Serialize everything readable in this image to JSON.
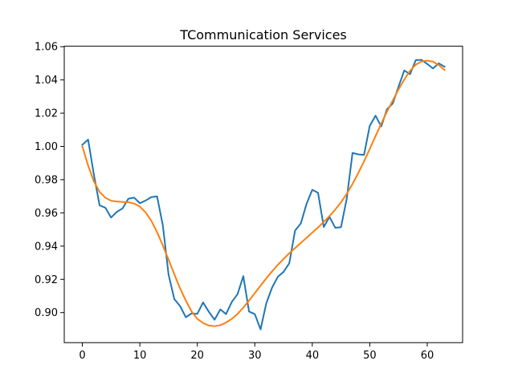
{
  "chart_data": {
    "type": "line",
    "title": "TCommunication Services",
    "xlabel": "",
    "ylabel": "",
    "xlim": [
      -3.15,
      66.15
    ],
    "ylim": [
      0.8819,
      1.0603
    ],
    "x_ticks": [
      0,
      10,
      20,
      30,
      40,
      50,
      60
    ],
    "y_ticks": [
      0.9,
      0.92,
      0.94,
      0.96,
      0.98,
      1.0,
      1.02,
      1.04,
      1.06
    ],
    "y_tick_labels": [
      "0.90",
      "0.92",
      "0.94",
      "0.96",
      "0.98",
      "1.00",
      "1.02",
      "1.04",
      "1.06"
    ],
    "grid": false,
    "legend": "none",
    "series": [
      {
        "color": "#1f77b4",
        "x": [
          0,
          1,
          2,
          3,
          4,
          5,
          6,
          7,
          8,
          9,
          10,
          11,
          12,
          13,
          14,
          15,
          16,
          17,
          18,
          19,
          20,
          21,
          22,
          23,
          24,
          25,
          26,
          27,
          28,
          29,
          30,
          31,
          32,
          33,
          34,
          35,
          36,
          37,
          38,
          39,
          40,
          41,
          42,
          43,
          44,
          45,
          46,
          47,
          48,
          49,
          50,
          51,
          52,
          53,
          54,
          55,
          56,
          57,
          58,
          59,
          60,
          61,
          62,
          63
        ],
        "values": [
          1.001,
          1.0041,
          0.9831,
          0.9645,
          0.9631,
          0.9572,
          0.9606,
          0.9627,
          0.9685,
          0.9692,
          0.9658,
          0.9674,
          0.9695,
          0.9699,
          0.9525,
          0.9228,
          0.9081,
          0.9039,
          0.8972,
          0.8995,
          0.8992,
          0.9061,
          0.9005,
          0.8957,
          0.9019,
          0.8991,
          0.9064,
          0.9111,
          0.9219,
          0.9006,
          0.8991,
          0.8899,
          0.9056,
          0.915,
          0.9215,
          0.9245,
          0.9297,
          0.9493,
          0.9536,
          0.9654,
          0.9739,
          0.9721,
          0.9515,
          0.9576,
          0.951,
          0.9514,
          0.9687,
          0.9961,
          0.9952,
          0.9949,
          1.0124,
          1.0185,
          1.012,
          1.0224,
          1.0258,
          1.0359,
          1.0457,
          1.0434,
          1.0519,
          1.0521,
          1.0496,
          1.0469,
          1.05,
          1.048
        ]
      },
      {
        "color": "#ff7f0e",
        "x": [
          0,
          1,
          2,
          3,
          4,
          5,
          6,
          7,
          8,
          9,
          10,
          11,
          12,
          13,
          14,
          15,
          16,
          17,
          18,
          19,
          20,
          21,
          22,
          23,
          24,
          25,
          26,
          27,
          28,
          29,
          30,
          31,
          32,
          33,
          34,
          35,
          36,
          37,
          38,
          39,
          40,
          41,
          42,
          43,
          44,
          45,
          46,
          47,
          48,
          49,
          50,
          51,
          52,
          53,
          54,
          55,
          56,
          57,
          58,
          59,
          60,
          61,
          62,
          63
        ],
        "values": [
          1.0,
          0.9885,
          0.979,
          0.9726,
          0.9691,
          0.9673,
          0.9668,
          0.9666,
          0.9664,
          0.9656,
          0.9638,
          0.9603,
          0.9552,
          0.9484,
          0.9404,
          0.9318,
          0.923,
          0.9146,
          0.9072,
          0.9007,
          0.8962,
          0.8937,
          0.8922,
          0.8918,
          0.8924,
          0.894,
          0.8962,
          0.8992,
          0.903,
          0.9073,
          0.9117,
          0.9162,
          0.9206,
          0.9248,
          0.9287,
          0.9323,
          0.9357,
          0.9388,
          0.9419,
          0.945,
          0.9481,
          0.9512,
          0.9546,
          0.9581,
          0.962,
          0.9664,
          0.9715,
          0.9774,
          0.984,
          0.991,
          0.9985,
          1.0062,
          1.0137,
          1.021,
          1.0276,
          1.0343,
          1.0402,
          1.0455,
          1.0492,
          1.0511,
          1.0516,
          1.051,
          1.049,
          1.046
        ]
      }
    ]
  }
}
